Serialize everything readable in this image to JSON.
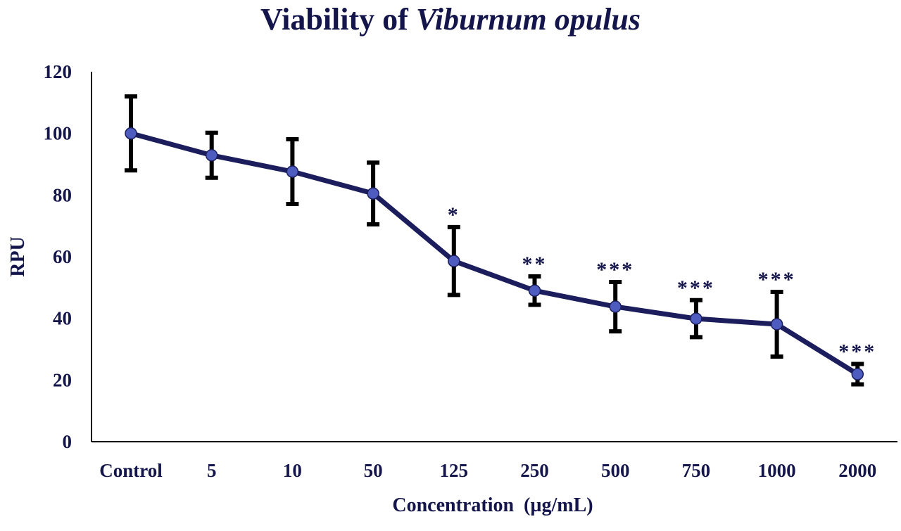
{
  "chart_data": {
    "type": "line",
    "title_prefix": "Viability of ",
    "title_italic": "Viburnum opulus",
    "xlabel": "Concentration  (µg/mL)",
    "ylabel": "RPU",
    "ylim": [
      0,
      120
    ],
    "yticks": [
      0,
      20,
      40,
      60,
      80,
      100,
      120
    ],
    "grid": false,
    "categories": [
      "Control",
      "5",
      "10",
      "50",
      "125",
      "250",
      "500",
      "750",
      "1000",
      "2000"
    ],
    "values": [
      100,
      92.9,
      87.6,
      80.5,
      58.6,
      49.0,
      43.8,
      39.9,
      38.1,
      21.9
    ],
    "errors": [
      12,
      7.3,
      10.5,
      10,
      11,
      4.6,
      8,
      6,
      10.5,
      3.3
    ],
    "significance": [
      "",
      "",
      "",
      "",
      "*",
      "**",
      "***",
      "***",
      "***",
      "***"
    ],
    "colors": {
      "line": "#1b1d5c",
      "marker": "#4e5cbf",
      "error": "#000000",
      "text": "#14154a"
    }
  }
}
